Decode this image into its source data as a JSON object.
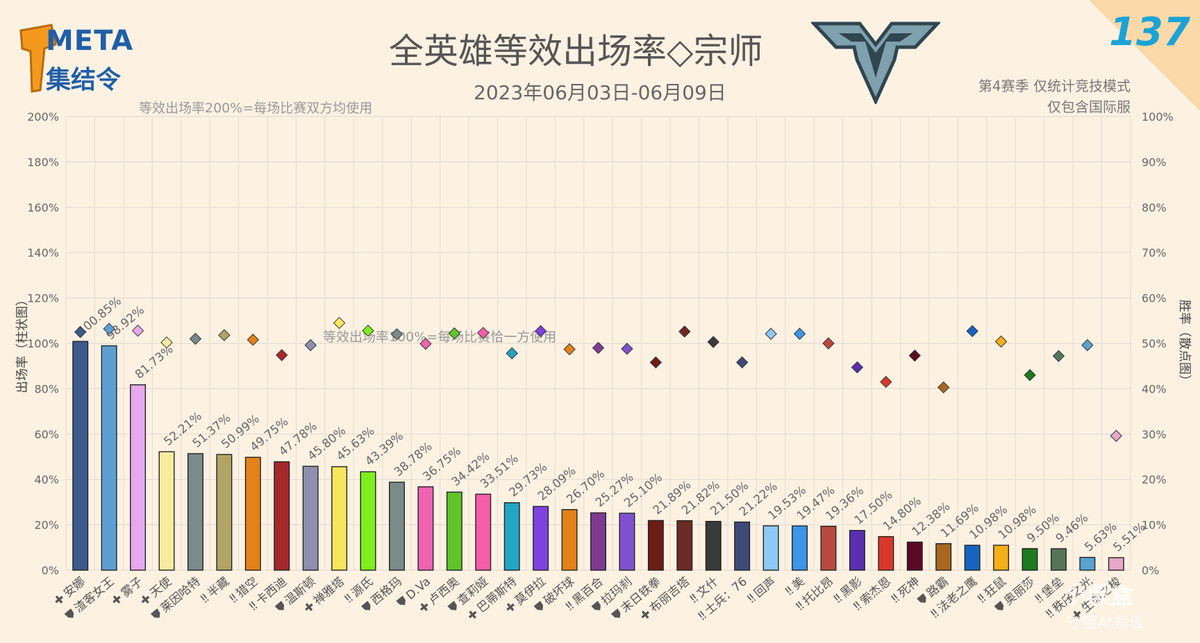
{
  "header": {
    "logo_text": "META",
    "logo_sub": "集结令",
    "title": "全英雄等效出场率◇宗师",
    "date_range": "2023年06月03日-06月09日",
    "note_line1": "第4赛季 仅统计竞技模式",
    "note_line2": "仅包含国际服",
    "issue_number": "137"
  },
  "colors": {
    "background": "#fdf1e2",
    "grid": "#e2dcd3",
    "axis_text": "#666666",
    "badge": "#1ba3d6",
    "corner": "#fbd9a8"
  },
  "chart_data": {
    "type": "bar",
    "y_left_label": "出场率（柱状图）",
    "y_right_label": "胜率（散点图）",
    "y_left_ticks": [
      "0%",
      "20%",
      "40%",
      "60%",
      "80%",
      "100%",
      "120%",
      "140%",
      "160%",
      "180%",
      "200%"
    ],
    "y_right_ticks": [
      "0%",
      "10%",
      "20%",
      "30%",
      "40%",
      "50%",
      "60%",
      "70%",
      "80%",
      "90%",
      "100%"
    ],
    "ylim_left": [
      0,
      200
    ],
    "ylim_right": [
      0,
      100
    ],
    "annotation_top": "等效出场率200%=每场比赛双方均使用",
    "annotation_mid": "等效出场率100%=每场比赛恰一方使用",
    "grid": true,
    "series": [
      {
        "name": "出场率",
        "kind": "bar"
      },
      {
        "name": "胜率",
        "kind": "scatter"
      }
    ],
    "heroes": [
      {
        "role": "✚",
        "name": "安娜",
        "pick": 100.85,
        "pick_label": "100.85%",
        "win": 52.5,
        "color": "#3d5a8c"
      },
      {
        "role": "⛊",
        "name": "渣客女王",
        "pick": 98.92,
        "pick_label": "98.92%",
        "win": 53.2,
        "color": "#5ca0d3"
      },
      {
        "role": "✚",
        "name": "雾子",
        "pick": 81.73,
        "pick_label": "81.73%",
        "win": 52.8,
        "color": "#e8a8ec"
      },
      {
        "role": "✚",
        "name": "天使",
        "pick": 52.21,
        "pick_label": "52.21%",
        "win": 50.2,
        "color": "#f7eba0"
      },
      {
        "role": "⛊",
        "name": "莱因哈特",
        "pick": 51.37,
        "pick_label": "51.37%",
        "win": 51.0,
        "color": "#7b8b89"
      },
      {
        "role": "‼",
        "name": "半藏",
        "pick": 50.99,
        "pick_label": "50.99%",
        "win": 51.8,
        "color": "#b0a565"
      },
      {
        "role": "‼",
        "name": "猎空",
        "pick": 49.75,
        "pick_label": "49.75%",
        "win": 50.8,
        "color": "#e38218"
      },
      {
        "role": "‼",
        "name": "卡西迪",
        "pick": 47.78,
        "pick_label": "47.78%",
        "win": 47.4,
        "color": "#a5282b"
      },
      {
        "role": "⛊",
        "name": "温斯顿",
        "pick": 45.8,
        "pick_label": "45.80%",
        "win": 49.6,
        "color": "#8f8fb0"
      },
      {
        "role": "✚",
        "name": "禅雅塔",
        "pick": 45.63,
        "pick_label": "45.63%",
        "win": 54.5,
        "color": "#f7e65c"
      },
      {
        "role": "‼",
        "name": "源氏",
        "pick": 43.39,
        "pick_label": "43.39%",
        "win": 52.8,
        "color": "#7dee1e"
      },
      {
        "role": "⛊",
        "name": "西格玛",
        "pick": 38.78,
        "pick_label": "38.78%",
        "win": 52.0,
        "color": "#7b8b89"
      },
      {
        "role": "⛊",
        "name": "D.Va",
        "pick": 36.75,
        "pick_label": "36.75%",
        "win": 49.9,
        "color": "#ef63b0"
      },
      {
        "role": "✚",
        "name": "卢西奥",
        "pick": 34.42,
        "pick_label": "34.42%",
        "win": 52.2,
        "color": "#60c42a"
      },
      {
        "role": "⛊",
        "name": "查莉娅",
        "pick": 33.51,
        "pick_label": "33.51%",
        "win": 52.3,
        "color": "#f55ea8"
      },
      {
        "role": "✚",
        "name": "巴蒂斯特",
        "pick": 29.73,
        "pick_label": "29.73%",
        "win": 47.8,
        "color": "#22a6c4"
      },
      {
        "role": "✚",
        "name": "莫伊拉",
        "pick": 28.09,
        "pick_label": "28.09%",
        "win": 52.7,
        "color": "#7e42de"
      },
      {
        "role": "⛊",
        "name": "破坏球",
        "pick": 26.7,
        "pick_label": "26.70%",
        "win": 48.7,
        "color": "#e38218"
      },
      {
        "role": "‼",
        "name": "黑百合",
        "pick": 25.27,
        "pick_label": "25.27%",
        "win": 49.0,
        "color": "#7f3a92"
      },
      {
        "role": "⛊",
        "name": "拉玛刹",
        "pick": 25.1,
        "pick_label": "25.10%",
        "win": 48.8,
        "color": "#7e52cf"
      },
      {
        "role": "⛊",
        "name": "末日铁拳",
        "pick": 21.89,
        "pick_label": "21.89%",
        "win": 45.8,
        "color": "#6b1d16"
      },
      {
        "role": "✚",
        "name": "布丽吉塔",
        "pick": 21.82,
        "pick_label": "21.82%",
        "win": 52.6,
        "color": "#6e2a24"
      },
      {
        "role": "‼",
        "name": "文什",
        "pick": 21.5,
        "pick_label": "21.50%",
        "win": 50.3,
        "color": "#3a3a3a"
      },
      {
        "role": "‼",
        "name": "士兵：76",
        "pick": 21.22,
        "pick_label": "21.22%",
        "win": 45.8,
        "color": "#3d4a78"
      },
      {
        "role": "‼",
        "name": "回声",
        "pick": 19.53,
        "pick_label": "19.53%",
        "win": 52.1,
        "color": "#8ec8f7"
      },
      {
        "role": "‼",
        "name": "美",
        "pick": 19.47,
        "pick_label": "19.47%",
        "win": 52.1,
        "color": "#3e94e6"
      },
      {
        "role": "‼",
        "name": "托比昂",
        "pick": 19.36,
        "pick_label": "19.36%",
        "win": 50.0,
        "color": "#b84a3f"
      },
      {
        "role": "‼",
        "name": "黑影",
        "pick": 17.5,
        "pick_label": "17.50%",
        "win": 44.7,
        "color": "#5a2fb0"
      },
      {
        "role": "‼",
        "name": "索杰恩",
        "pick": 14.8,
        "pick_label": "14.80%",
        "win": 41.5,
        "color": "#d9382b"
      },
      {
        "role": "‼",
        "name": "死神",
        "pick": 12.38,
        "pick_label": "12.38%",
        "win": 47.3,
        "color": "#5a0a24"
      },
      {
        "role": "⛊",
        "name": "路霸",
        "pick": 11.69,
        "pick_label": "11.69%",
        "win": 40.3,
        "color": "#a8671e"
      },
      {
        "role": "‼",
        "name": "法老之鹰",
        "pick": 10.98,
        "pick_label": "10.98%",
        "win": 52.7,
        "color": "#1565c0"
      },
      {
        "role": "‼",
        "name": "狂鼠",
        "pick": 10.98,
        "pick_label": "10.98%",
        "win": 50.4,
        "color": "#f4b018"
      },
      {
        "role": "⛊",
        "name": "奥丽莎",
        "pick": 9.5,
        "pick_label": "9.50%",
        "win": 43.0,
        "color": "#1e7a1e"
      },
      {
        "role": "‼",
        "name": "堡垒",
        "pick": 9.46,
        "pick_label": "9.46%",
        "win": 47.2,
        "color": "#567558"
      },
      {
        "role": "‼",
        "name": "秩序之光",
        "pick": 5.63,
        "pick_label": "5.63%",
        "win": 49.6,
        "color": "#5aa2cf"
      },
      {
        "role": "✚",
        "name": "生命之梭",
        "pick": 5.51,
        "pick_label": "5.51%",
        "win": 29.6,
        "color": "#e7a7c7"
      }
    ]
  },
  "watermark": {
    "text": "小黑盒",
    "sub": "守望At吾语"
  }
}
